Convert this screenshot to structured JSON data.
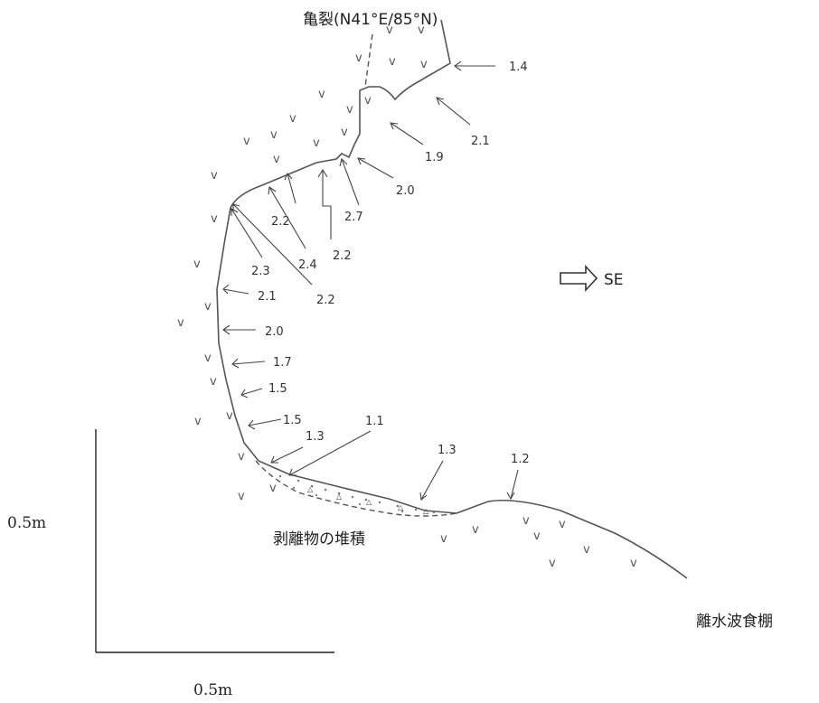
{
  "title": "亀裂(N41°E/85°N)",
  "direction_label": "SE",
  "deposit_label": "剥離物の堆積",
  "terrace_label": "離水波食棚",
  "scale_vertical_label": "0.5m",
  "scale_horizontal_label": "0.5m",
  "measurements": [
    "1.4",
    "2.1",
    "1.9",
    "2.0",
    "2.7",
    "2.2",
    "2.2",
    "2.4",
    "2.3",
    "2.2",
    "2.1",
    "2.0",
    "1.7",
    "1.5",
    "1.5",
    "1.3",
    "1.1",
    "1.3",
    "1.2"
  ],
  "rock_symbol": "v"
}
